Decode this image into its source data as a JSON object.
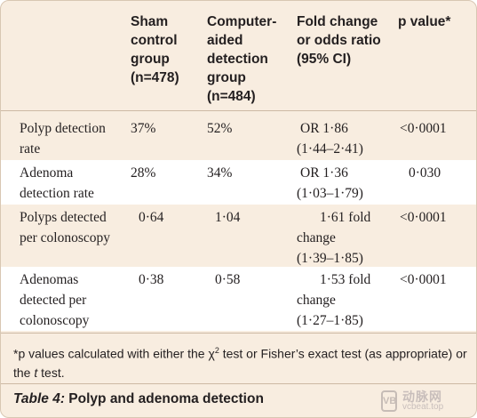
{
  "table": {
    "headers": [
      [
        "Sham",
        "control",
        "group",
        "(n=478)"
      ],
      [
        "Computer-",
        "aided",
        "detection",
        "group",
        "(n=484)"
      ],
      [
        "Fold change",
        "or odds ratio",
        "(95% CI)"
      ],
      [
        "p value*"
      ]
    ],
    "rows": [
      {
        "label": [
          "Polyp detection",
          "rate"
        ],
        "sham": "37%",
        "cad": "52%",
        "effect": [
          "OR 1·86",
          "(1·44–2·41)"
        ],
        "p": "<0·0001"
      },
      {
        "label": [
          "Adenoma",
          "detection rate"
        ],
        "sham": "28%",
        "cad": "34%",
        "effect": [
          "OR 1·36",
          "(1·03–1·79)"
        ],
        "p": "0·030"
      },
      {
        "label": [
          "Polyps detected",
          "per colonoscopy"
        ],
        "sham": "0·64",
        "cad": "1·04",
        "effect": [
          "1·61 fold",
          "change",
          "(1·39–1·85)"
        ],
        "p": "<0·0001"
      },
      {
        "label": [
          "Adenomas",
          "detected per",
          "colonoscopy"
        ],
        "sham": "0·38",
        "cad": "0·58",
        "effect": [
          "1·53 fold",
          "change",
          "(1·27–1·85)"
        ],
        "p": "<0·0001"
      }
    ]
  },
  "footnote": {
    "part1": "*p values calculated with either the χ",
    "sup": "2",
    "part2": " test or Fisher’s exact test (as appropriate) or",
    "line2_pre": "the ",
    "line2_ital": "t",
    "line2_post": " test."
  },
  "caption": {
    "label": "Table 4:",
    "title": " Polyp and adenoma detection"
  },
  "watermark": {
    "logo_text": "VB",
    "cn_text": "动脉网",
    "url_text": "vcbeat.top"
  },
  "colors": {
    "panel": "#f8ede0",
    "row_alt": "#ffffff",
    "rule": "#cdb9a4"
  }
}
